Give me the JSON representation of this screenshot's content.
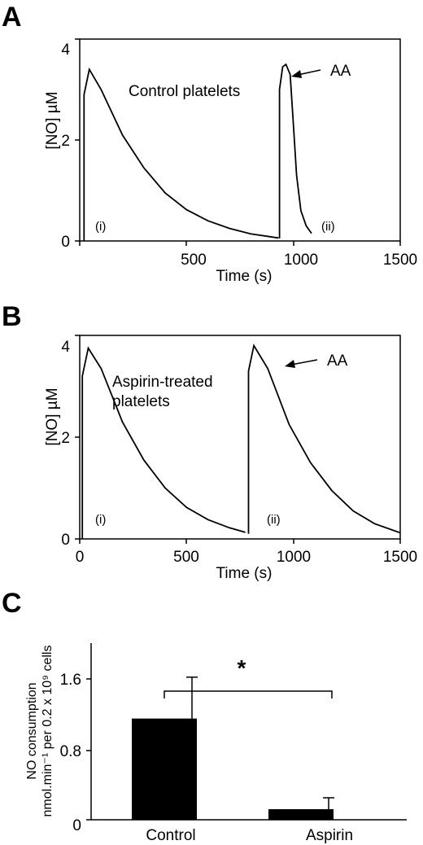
{
  "chart_data": [
    {
      "panel": "A",
      "type": "line",
      "xlabel": "Time (s)",
      "ylabel": "[NO] µM",
      "xlim": [
        0,
        1500
      ],
      "ylim": [
        0,
        4
      ],
      "xticks": [
        "0",
        "500",
        "1000",
        "1500"
      ],
      "yticks": [
        "0",
        "2",
        "4"
      ],
      "annotations": {
        "label": "Control platelets",
        "arrow": "AA",
        "first": "(i)",
        "second": "(ii)"
      },
      "series": [
        {
          "additions": [
            {
              "x": [
                20,
                20,
                45,
                100,
                200,
                300,
                400,
                500,
                600,
                700,
                800,
                930
              ],
              "y": [
                0,
                2.9,
                3.4,
                3.0,
                2.1,
                1.45,
                0.95,
                0.62,
                0.4,
                0.25,
                0.14,
                0.06
              ]
            },
            {
              "x": [
                935,
                935,
                950,
                965,
                985,
                1000,
                1015,
                1035,
                1060,
                1085
              ],
              "y": [
                0.05,
                3.0,
                3.45,
                3.5,
                3.3,
                2.3,
                1.3,
                0.6,
                0.3,
                0.15
              ]
            }
          ]
        }
      ]
    },
    {
      "panel": "B",
      "type": "line",
      "xlabel": "Time (s)",
      "ylabel": "[NO] µM",
      "xlim": [
        0,
        1500
      ],
      "ylim": [
        0,
        4
      ],
      "xticks": [
        "0",
        "500",
        "1000",
        "1500"
      ],
      "yticks": [
        "0",
        "2",
        "4"
      ],
      "annotations": {
        "label1": "Aspirin-treated",
        "label2": "platelets",
        "arrow": "AA",
        "first": "(i)",
        "second": "(ii)"
      },
      "series": [
        {
          "additions": [
            {
              "x": [
                12,
                12,
                40,
                100,
                200,
                300,
                400,
                500,
                600,
                700,
                775
              ],
              "y": [
                0,
                3.2,
                3.75,
                3.35,
                2.3,
                1.55,
                1.0,
                0.62,
                0.38,
                0.22,
                0.13
              ]
            },
            {
              "x": [
                790,
                790,
                815,
                880,
                980,
                1080,
                1180,
                1280,
                1380,
                1500
              ],
              "y": [
                0.1,
                3.3,
                3.8,
                3.35,
                2.25,
                1.5,
                0.95,
                0.55,
                0.3,
                0.12
              ]
            }
          ]
        }
      ]
    },
    {
      "panel": "C",
      "type": "bar",
      "ylabel_line1": "NO consumption",
      "ylabel_line2": "nmol.min⁻¹ per 0.2 x 10⁹ cells",
      "ylim": [
        0,
        2
      ],
      "yticks": [
        "0",
        "0.8",
        "1.6"
      ],
      "categories": [
        "Control",
        "Aspirin"
      ],
      "values": [
        1.15,
        0.12
      ],
      "errors": [
        0.47,
        0.13
      ],
      "significance": "*",
      "bar_color": "#000000"
    }
  ]
}
